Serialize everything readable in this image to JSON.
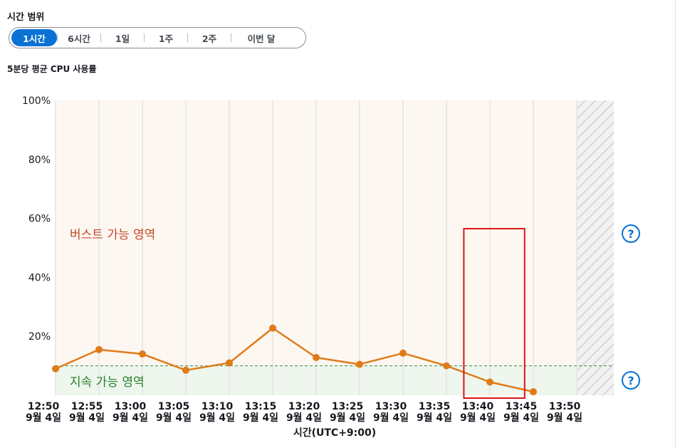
{
  "section_title": "시간 범위",
  "time_ranges": [
    {
      "label": "1시간",
      "active": true
    },
    {
      "label": "6시간",
      "active": false
    },
    {
      "label": "1일",
      "active": false
    },
    {
      "label": "1주",
      "active": false
    },
    {
      "label": "2주",
      "active": false
    },
    {
      "label": "이번 달",
      "active": false
    }
  ],
  "chart_title": "5분당 평균 CPU 사용률",
  "help_icons": [
    "help-icon",
    "help-icon"
  ],
  "help_icon_glyph": "?",
  "colors": {
    "accent": "#0972d3",
    "line": "#e07b19",
    "burst_zone_bg": "#fdf7f1",
    "sustain_zone_bg": "#eef6ee",
    "burst_label": "#c44a2a",
    "sustain_label": "#2a7f2a",
    "highlight_box": "#d91515"
  },
  "chart_data": {
    "type": "line",
    "title": "5분당 평균 CPU 사용률",
    "xlabel": "시간(UTC+9:00)",
    "ylabel": "",
    "ylim": [
      0,
      100
    ],
    "y_ticks": [
      "100%",
      "80%",
      "60%",
      "40%",
      "20%"
    ],
    "y_tick_values": [
      100,
      80,
      60,
      40,
      20
    ],
    "x_ticks": [
      {
        "time": "12:50",
        "date": "9월 4일"
      },
      {
        "time": "12:55",
        "date": "9월 4일"
      },
      {
        "time": "13:00",
        "date": "9월 4일"
      },
      {
        "time": "13:05",
        "date": "9월 4일"
      },
      {
        "time": "13:10",
        "date": "9월 4일"
      },
      {
        "time": "13:15",
        "date": "9월 4일"
      },
      {
        "time": "13:20",
        "date": "9월 4일"
      },
      {
        "time": "13:25",
        "date": "9월 4일"
      },
      {
        "time": "13:30",
        "date": "9월 4일"
      },
      {
        "time": "13:35",
        "date": "9월 4일"
      },
      {
        "time": "13:40",
        "date": "9월 4일"
      },
      {
        "time": "13:45",
        "date": "9월 4일"
      },
      {
        "time": "13:50",
        "date": "9월 4일"
      }
    ],
    "x": [
      "12:50",
      "12:55",
      "13:00",
      "13:05",
      "13:10",
      "13:15",
      "13:20",
      "13:25",
      "13:30",
      "13:35",
      "13:40",
      "13:45"
    ],
    "values": [
      9,
      15.5,
      14,
      8.5,
      11,
      22.8,
      12.8,
      10.5,
      14.3,
      10,
      4.5,
      1.2
    ],
    "sustainable_threshold": 10,
    "zones": {
      "burst": "버스트 가능 영역",
      "sustain": "지속 가능 영역"
    },
    "grid": true,
    "highlight_range": {
      "x_from": "13:37",
      "x_to": "13:44",
      "y_from": 0,
      "y_to": 56.5
    }
  }
}
